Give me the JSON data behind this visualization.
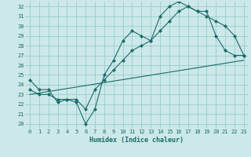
{
  "xlabel": "Humidex (Indice chaleur)",
  "bg_color": "#cce8e8",
  "grid_color": "#99cccc",
  "line_color": "#1a6b6b",
  "xlim": [
    -0.5,
    23.5
  ],
  "ylim": [
    19.5,
    32.5
  ],
  "xticks": [
    0,
    1,
    2,
    3,
    4,
    5,
    6,
    7,
    8,
    9,
    10,
    11,
    12,
    13,
    14,
    15,
    16,
    17,
    18,
    19,
    20,
    21,
    22,
    23
  ],
  "yticks": [
    20,
    21,
    22,
    23,
    24,
    25,
    26,
    27,
    28,
    29,
    30,
    31,
    32
  ],
  "curve1_x": [
    0,
    1,
    2,
    3,
    4,
    5,
    6,
    7,
    8,
    9,
    10,
    11,
    12,
    13,
    14,
    15,
    16,
    17,
    18,
    19,
    20,
    21,
    22,
    23
  ],
  "curve1_y": [
    24.5,
    23.5,
    23.5,
    22.2,
    22.5,
    22.2,
    20.0,
    21.5,
    25.0,
    26.5,
    28.5,
    29.5,
    29.0,
    28.5,
    31.0,
    32.0,
    32.5,
    32.0,
    31.5,
    31.5,
    29.0,
    27.5,
    27.0,
    27.0
  ],
  "curve2_x": [
    0,
    1,
    2,
    3,
    4,
    5,
    6,
    7,
    8,
    9,
    10,
    11,
    12,
    13,
    14,
    15,
    16,
    17,
    18,
    19,
    20,
    21,
    22,
    23
  ],
  "curve2_y": [
    23.5,
    23.0,
    23.0,
    22.5,
    22.5,
    22.5,
    21.5,
    23.5,
    24.5,
    25.5,
    26.5,
    27.5,
    28.0,
    28.5,
    29.5,
    30.5,
    31.5,
    32.0,
    31.5,
    31.0,
    30.5,
    30.0,
    29.0,
    27.0
  ],
  "curve3_x": [
    0,
    23
  ],
  "curve3_y": [
    23.0,
    26.5
  ]
}
